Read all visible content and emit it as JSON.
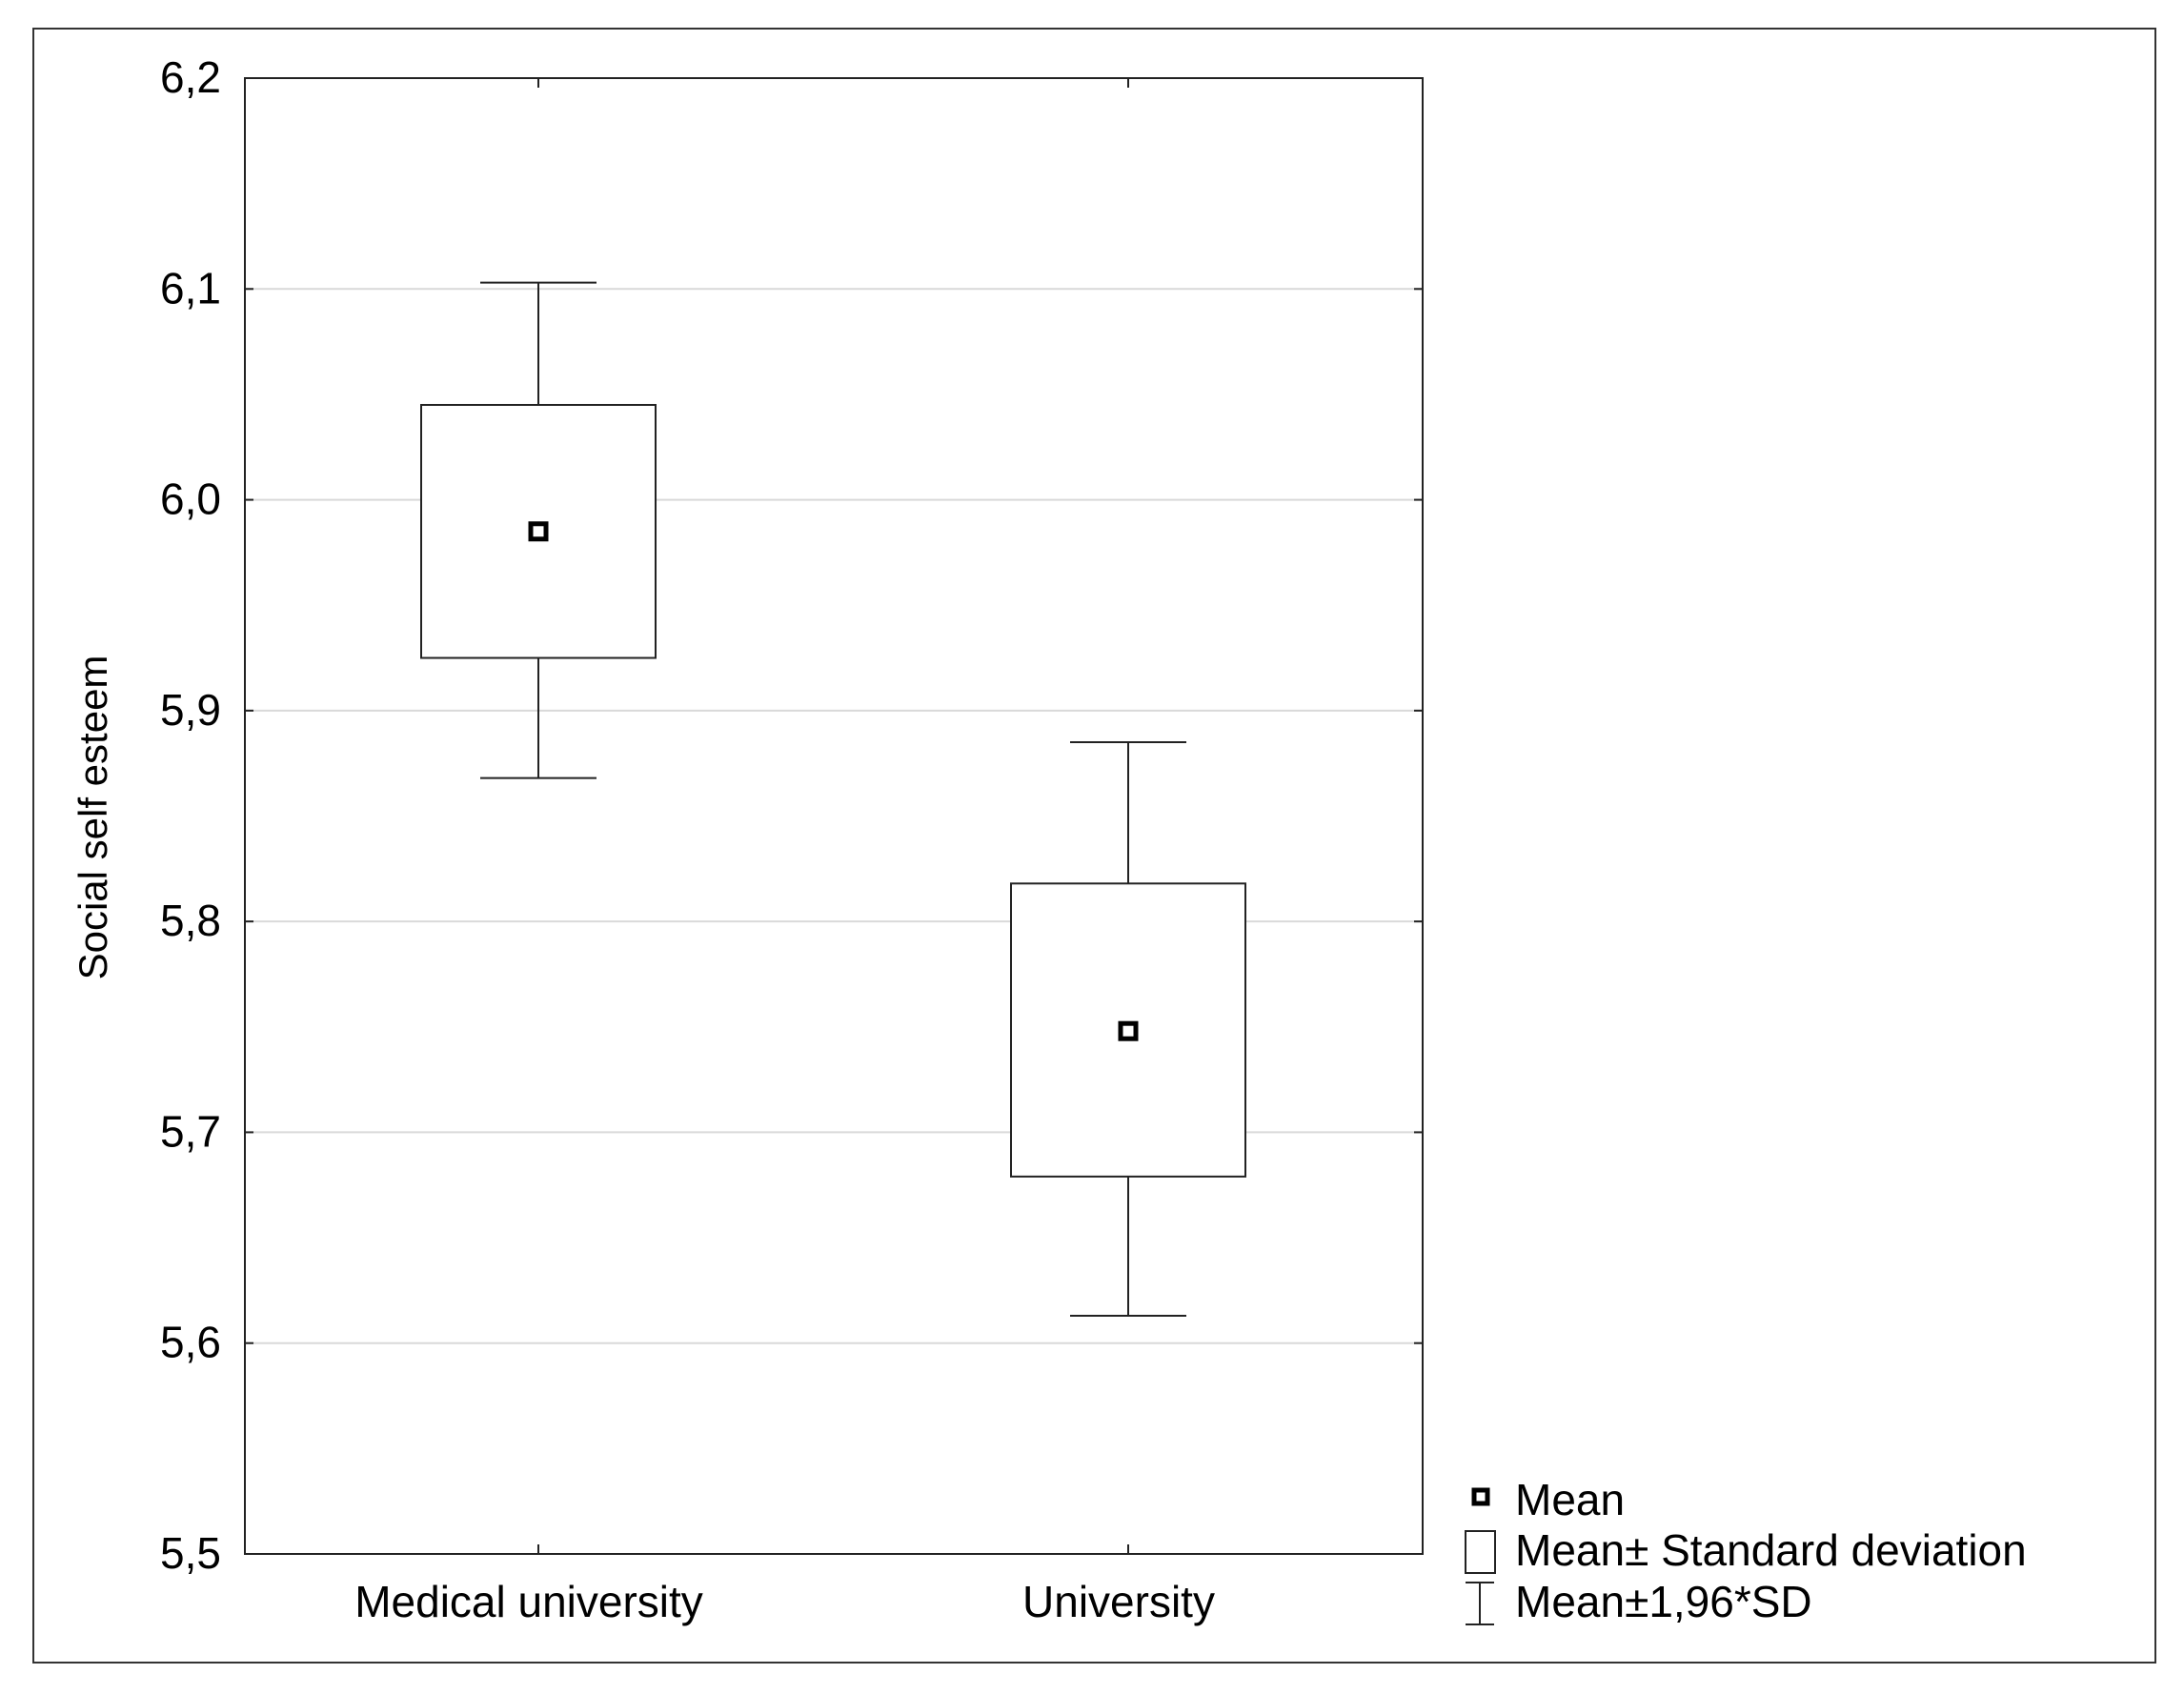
{
  "chart_data": {
    "type": "box",
    "ylabel": "Social self esteem",
    "xlabel": "",
    "ylim": [
      5.5,
      6.2
    ],
    "yticks": [
      5.5,
      5.6,
      5.7,
      5.8,
      5.9,
      6.0,
      6.1,
      6.2
    ],
    "ytick_labels": [
      "5,5",
      "5,6",
      "5,7",
      "5,8",
      "5,9",
      "6,0",
      "6,1",
      "6,2"
    ],
    "grid": true,
    "legend_position": "bottom-right",
    "categories": [
      "Medical university",
      "University"
    ],
    "groups": [
      {
        "name": "Medical university",
        "mean": 5.985,
        "sd_low": 5.925,
        "sd_high": 6.045,
        "ci_low": 5.868,
        "ci_high": 6.103
      },
      {
        "name": "University",
        "mean": 5.748,
        "sd_low": 5.679,
        "sd_high": 5.818,
        "ci_low": 5.613,
        "ci_high": 5.885
      }
    ],
    "legend": [
      {
        "marker": "mean-square",
        "label": "Mean"
      },
      {
        "marker": "box",
        "label": "Mean± Standard deviation"
      },
      {
        "marker": "whisker",
        "label": "Mean±1,96*SD"
      }
    ]
  }
}
